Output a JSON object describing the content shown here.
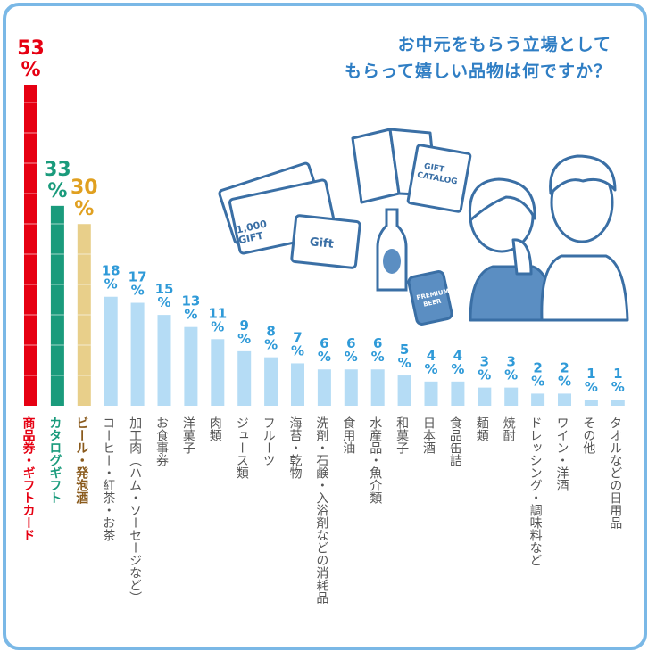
{
  "title_lines": [
    "お中元をもらう立場として",
    "もらって嬉しい品物は何ですか？"
  ],
  "illustration": {
    "gift_card_text": "1,000\nGIFT",
    "gift_label": "Gift",
    "catalog_text": "GIFT\nCATALOG",
    "can_text": "PREMIUM\nBEER"
  },
  "chart_data": {
    "type": "bar",
    "title": "お中元をもらう立場として もらって嬉しい品物は何ですか？",
    "unit": "%",
    "categories": [
      "商品券・ギフトカード",
      "カタログギフト",
      "ビール・発泡酒",
      "コーヒー・紅茶・お茶",
      "加工肉（ハム・ソーセージなど）",
      "お食事券",
      "洋菓子",
      "肉類",
      "ジュース類",
      "フルーツ",
      "海苔・乾物",
      "洗剤・石鹸・入浴剤などの消耗品",
      "食用油",
      "水産品・魚介類",
      "和菓子",
      "日本酒",
      "食品缶詰",
      "麺類",
      "焼酎",
      "ドレッシング・調味料など",
      "ワイン・洋酒",
      "その他",
      "タオルなどの日用品"
    ],
    "values": [
      53,
      33,
      30,
      18,
      17,
      15,
      13,
      11,
      9,
      8,
      7,
      6,
      6,
      6,
      5,
      4,
      4,
      3,
      3,
      2,
      2,
      1,
      1
    ],
    "ylim": [
      0,
      53
    ],
    "colors": {
      "top1": "#e60012",
      "top2": "#1a9b7c",
      "top3": "#e8cf8a",
      "top3_text": "#e0a020",
      "top3_label": "#8a5a1c",
      "rest": "#b5dcf5",
      "rest_text": "#2f9ad8",
      "label": "#555555",
      "frame": "#7ab8e6",
      "title": "#2f7ec4"
    }
  }
}
